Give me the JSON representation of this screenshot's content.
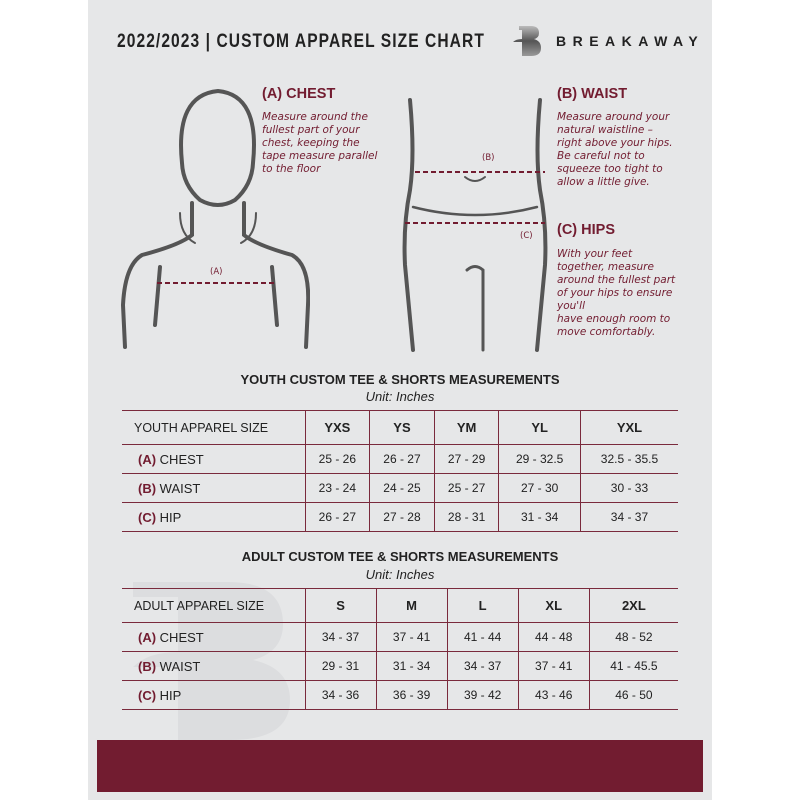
{
  "header": {
    "title": "2022/2023  |  CUSTOM APPAREL SIZE CHART",
    "brand": "BREAKAWAY",
    "logo_letter": "B"
  },
  "guide": {
    "chest": {
      "tag": "(A)",
      "heading": "(A) CHEST",
      "text": "Measure around the\nfullest part of your\nchest, keeping the\ntape measure parallel\nto the floor"
    },
    "waist": {
      "tag": "(B)",
      "heading": "(B) WAIST",
      "text": "Measure around your\nnatural waistline –\nright above your hips.\nBe careful not to\nsqueeze too tight to\nallow a little give."
    },
    "hips": {
      "tag": "(C)",
      "heading": "(C) HIPS",
      "text": "With your feet\ntogether, measure\naround the fullest part\nof your hips to ensure\nyou'll\nhave enough room to\nmove comfortably."
    }
  },
  "youth": {
    "title": "YOUTH CUSTOM TEE & SHORTS MEASUREMENTS",
    "unit": "Unit: Inches",
    "size_label": "YOUTH APPAREL SIZE",
    "sizes": [
      "YXS",
      "YS",
      "YM",
      "YL",
      "YXL"
    ],
    "rows": [
      {
        "letter": "(A)",
        "name": "CHEST",
        "values": [
          "25 - 26",
          "26 - 27",
          "27 - 29",
          "29 - 32.5",
          "32.5 - 35.5"
        ]
      },
      {
        "letter": "(B)",
        "name": "WAIST",
        "values": [
          "23 - 24",
          "24 - 25",
          "25 - 27",
          "27 - 30",
          "30 - 33"
        ]
      },
      {
        "letter": "(C)",
        "name": "HIP",
        "values": [
          "26 - 27",
          "27 - 28",
          "28 - 31",
          "31 - 34",
          "34 - 37"
        ]
      }
    ]
  },
  "adult": {
    "title": "ADULT CUSTOM TEE & SHORTS MEASUREMENTS",
    "unit": "Unit: Inches",
    "size_label": "ADULT APPAREL SIZE",
    "sizes": [
      "S",
      "M",
      "L",
      "XL",
      "2XL"
    ],
    "rows": [
      {
        "letter": "(A)",
        "name": "CHEST",
        "values": [
          "34 - 37",
          "37 - 41",
          "41 - 44",
          "44 - 48",
          "48 - 52"
        ]
      },
      {
        "letter": "(B)",
        "name": "WAIST",
        "values": [
          "29 - 31",
          "31 - 34",
          "34 - 37",
          "37 - 41",
          "41 - 45.5"
        ]
      },
      {
        "letter": "(C)",
        "name": "HIP",
        "values": [
          "34 - 36",
          "36 - 39",
          "39 - 42",
          "43 - 46",
          "46 - 50"
        ]
      }
    ]
  },
  "colors": {
    "accent": "#721c30",
    "background": "#e6e7e8",
    "text": "#222222"
  }
}
